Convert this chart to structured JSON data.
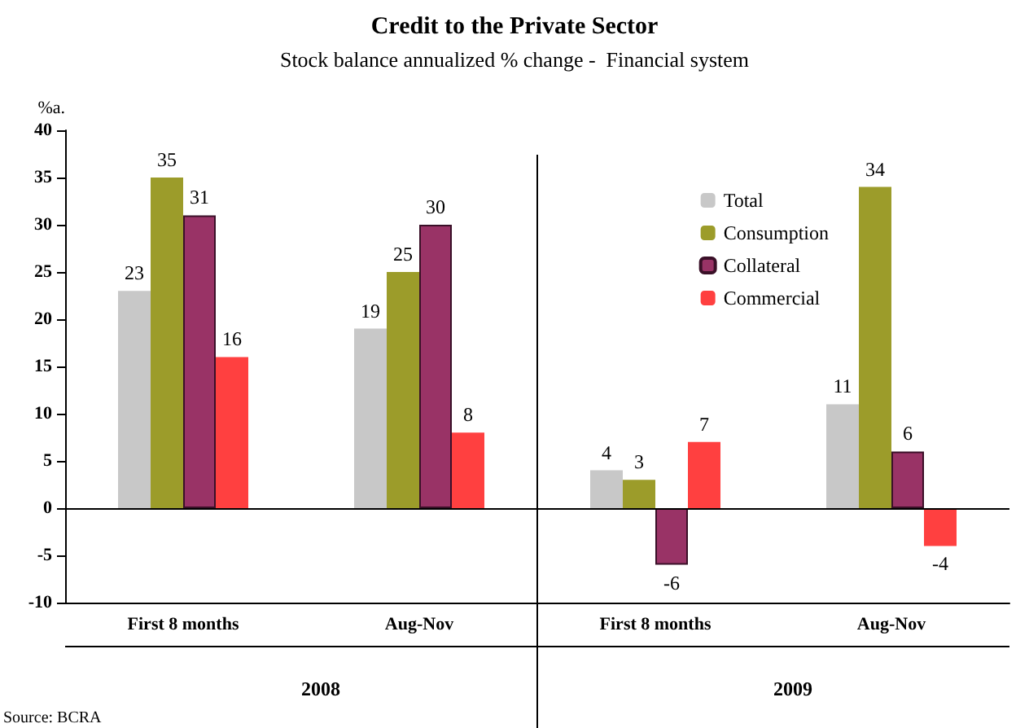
{
  "chart_data": {
    "type": "bar",
    "title": "Credit to the Private Sector",
    "subtitle": "Stock balance annualized % change -  Financial system",
    "ylabel": "%a.",
    "categories": [
      "First 8 months",
      "Aug-Nov",
      "First 8 months",
      "Aug-Nov"
    ],
    "series": [
      {
        "name": "Total",
        "color": "#c8c8c8",
        "values": [
          23,
          19,
          4,
          11
        ]
      },
      {
        "name": "Consumption",
        "color": "#9c9c2a",
        "values": [
          35,
          25,
          3,
          34
        ]
      },
      {
        "name": "Collateral",
        "color": "#993366",
        "values": [
          31,
          30,
          -6,
          6
        ]
      },
      {
        "name": "Commercial",
        "color": "#ff4040",
        "values": [
          16,
          8,
          7,
          -4
        ]
      }
    ],
    "ylim": [
      -10,
      40
    ],
    "yticks": [
      -10,
      -5,
      0,
      5,
      10,
      15,
      20,
      25,
      30,
      35,
      40
    ],
    "grid": false,
    "legend": "top right",
    "data_labels": true,
    "ref_lines": [
      {
        "axis": "y",
        "value": 0,
        "color": "#000000"
      }
    ],
    "annotations": [
      "2008",
      "2009",
      "Source: BCRA"
    ]
  }
}
